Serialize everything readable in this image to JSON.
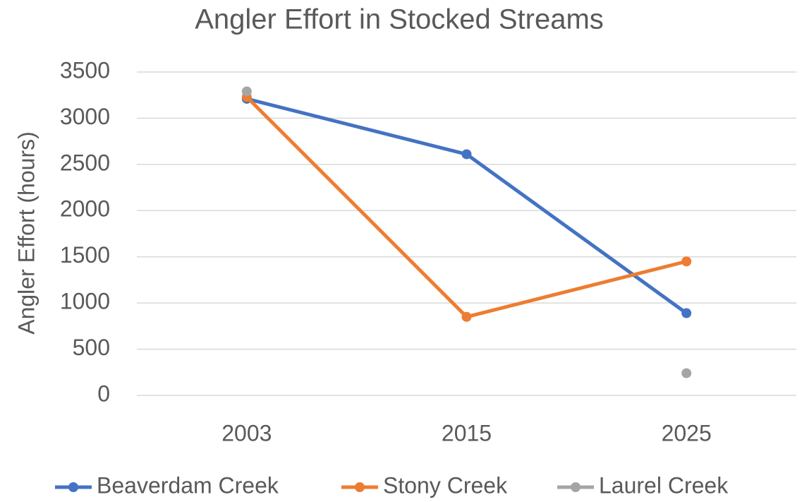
{
  "chart_data": {
    "type": "line",
    "title": "Angler Effort in Stocked Streams",
    "y_label": "Angler Effort (hours)",
    "categories": [
      "2003",
      "2015",
      "2025"
    ],
    "series": [
      {
        "name": "Beaverdam Creek",
        "color": "#4472c4",
        "values": [
          3210,
          2610,
          890
        ]
      },
      {
        "name": "Stony Creek",
        "color": "#ed7d31",
        "values": [
          3230,
          850,
          1450
        ]
      },
      {
        "name": "Laurel Creek",
        "color": "#a5a5a5",
        "values": [
          3290,
          null,
          240
        ]
      }
    ],
    "ylim": [
      0,
      3500
    ],
    "yticks": [
      0,
      500,
      1000,
      1500,
      2000,
      2500,
      3000,
      3500
    ],
    "grid": true,
    "legend": "bottom"
  }
}
